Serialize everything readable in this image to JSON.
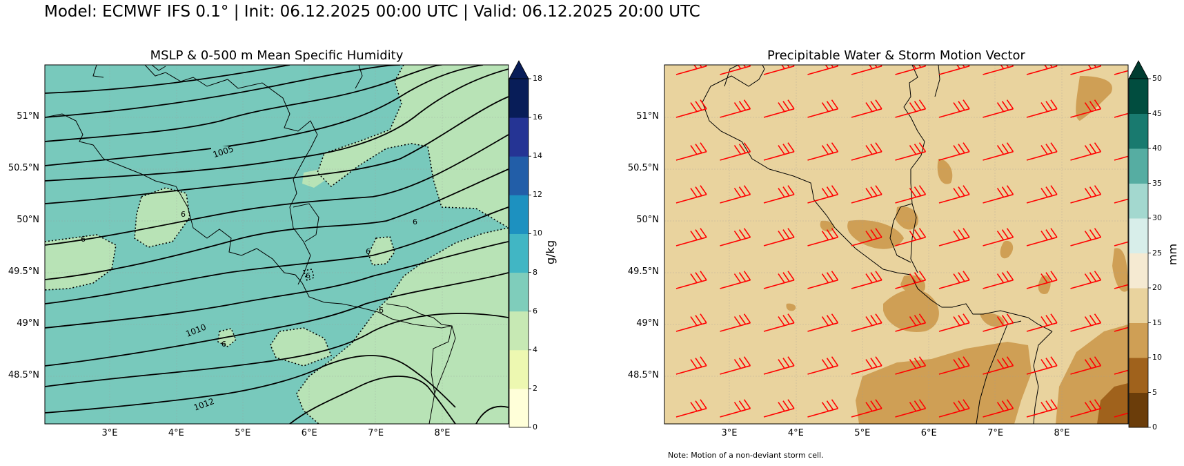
{
  "suptitle": "Model: ECMWF IFS 0.1° | Init: 06.12.2025 00:00 UTC | Valid: 06.12.2025 20:00 UTC",
  "left_panel": {
    "title": "MSLP & 0-500 m Mean Specific Humidity",
    "y_ticks": [
      "51°N",
      "50.5°N",
      "50°N",
      "49.5°N",
      "49°N",
      "48.5°N"
    ],
    "x_ticks": [
      "3°E",
      "4°E",
      "5°E",
      "6°E",
      "7°E",
      "8°E"
    ],
    "colorbar": {
      "label": "g/kg",
      "ticks": [
        "0",
        "2",
        "4",
        "6",
        "8",
        "10",
        "12",
        "14",
        "16",
        "18"
      ],
      "colors": [
        "#ffffd9",
        "#edf8b1",
        "#c7e9b4",
        "#7fcdbb",
        "#41b6c4",
        "#1d91c0",
        "#225ea8",
        "#253494",
        "#081d58"
      ],
      "extend_color": "#081d58"
    },
    "isobar_labels": [
      "1005",
      "1010",
      "1012"
    ],
    "humidity_labels": [
      "6",
      "6",
      "6",
      "6",
      "6",
      "6",
      "6"
    ]
  },
  "right_panel": {
    "title": "Precipitable Water & Storm Motion Vector",
    "y_ticks": [
      "51°N",
      "50.5°N",
      "50°N",
      "49.5°N",
      "49°N",
      "48.5°N"
    ],
    "x_ticks": [
      "3°E",
      "4°E",
      "5°E",
      "6°E",
      "7°E",
      "8°E"
    ],
    "colorbar": {
      "label": "mm",
      "ticks": [
        "0",
        "5",
        "10",
        "15",
        "20",
        "25",
        "30",
        "35",
        "40",
        "45",
        "50"
      ],
      "colors": [
        "#6b3d0a",
        "#a0621c",
        "#cf9f55",
        "#e9d39e",
        "#f5ead2",
        "#d8eeea",
        "#a3d8cf",
        "#56ada2",
        "#197a6f",
        "#014d3f"
      ],
      "extend_color": "#003c30"
    },
    "barb_color": "#ff0000",
    "note": "Note: Motion of a non-deviant storm cell."
  }
}
